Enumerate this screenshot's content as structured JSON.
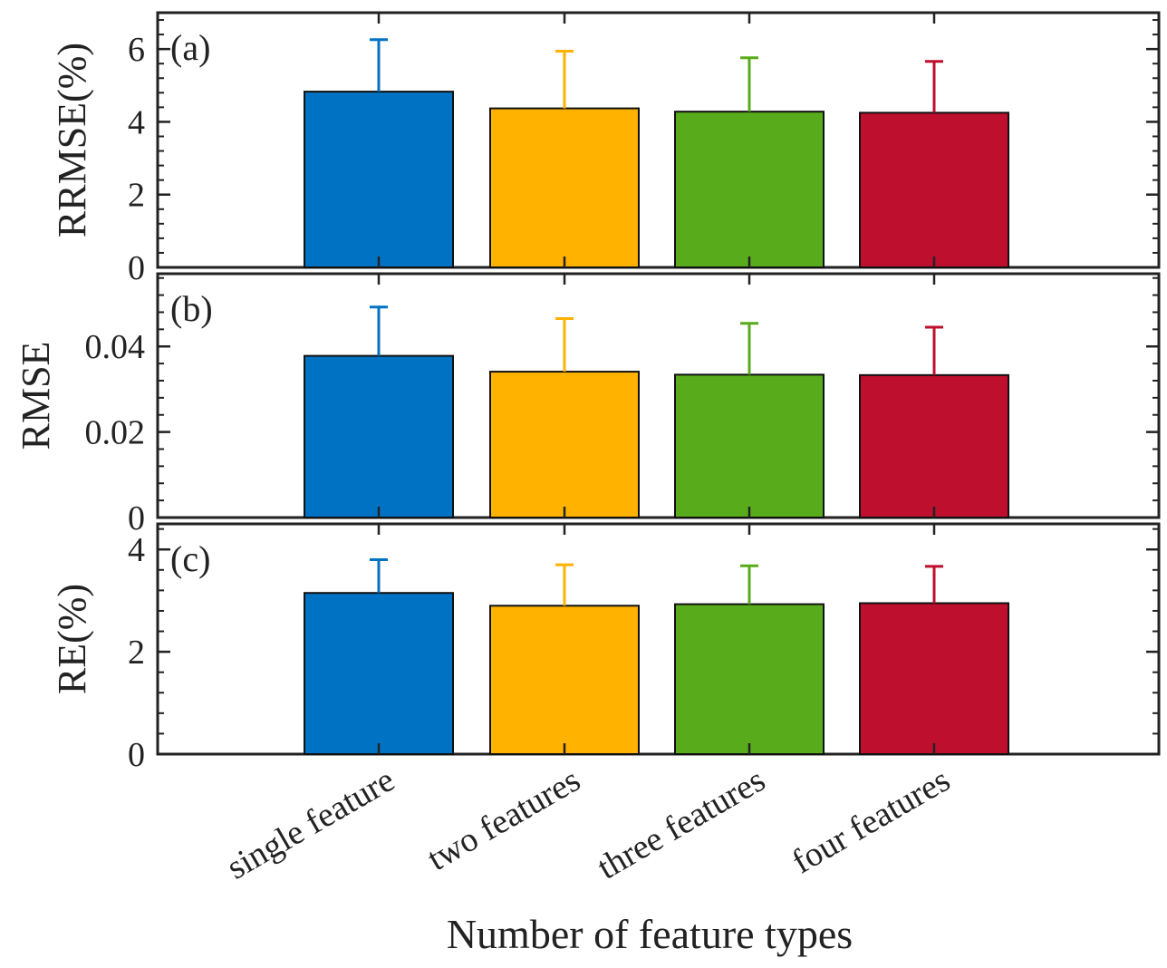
{
  "chart_data": [
    {
      "type": "bar",
      "panel_label": "(a)",
      "ylabel": "RRMSE(%)",
      "categories": [
        "single feature",
        "two features",
        "three features",
        "four features"
      ],
      "values": [
        4.83,
        4.37,
        4.28,
        4.25
      ],
      "error_upper": [
        1.43,
        1.57,
        1.48,
        1.41
      ],
      "ylim": [
        0,
        7
      ],
      "yticks": [
        "0",
        "2",
        "4",
        "6"
      ],
      "ytick_values": [
        0,
        2,
        4,
        6
      ],
      "colors": [
        "#0072C3",
        "#FFB200",
        "#58AC1B",
        "#BE0F2E"
      ],
      "grid": false
    },
    {
      "type": "bar",
      "panel_label": "(b)",
      "ylabel": "RMSE",
      "categories": [
        "single feature",
        "two features",
        "three features",
        "four features"
      ],
      "values": [
        0.0378,
        0.0341,
        0.0334,
        0.0333
      ],
      "error_upper": [
        0.0114,
        0.0124,
        0.012,
        0.0112
      ],
      "ylim": [
        0,
        0.057
      ],
      "yticks": [
        "0",
        "0.02",
        "0.04"
      ],
      "ytick_values": [
        0,
        0.02,
        0.04
      ],
      "colors": [
        "#0072C3",
        "#FFB200",
        "#58AC1B",
        "#BE0F2E"
      ],
      "grid": false
    },
    {
      "type": "bar",
      "panel_label": "(c)",
      "ylabel": "RE(%)",
      "categories": [
        "single feature",
        "two features",
        "three features",
        "four features"
      ],
      "values": [
        3.15,
        2.9,
        2.93,
        2.95
      ],
      "error_upper": [
        0.65,
        0.8,
        0.75,
        0.72
      ],
      "ylim": [
        0,
        4.5
      ],
      "yticks": [
        "0",
        "2",
        "4"
      ],
      "ytick_values": [
        0,
        2,
        4
      ],
      "colors": [
        "#0072C3",
        "#FFB200",
        "#58AC1B",
        "#BE0F2E"
      ],
      "grid": false
    }
  ],
  "xlabel": "Number of feature types"
}
